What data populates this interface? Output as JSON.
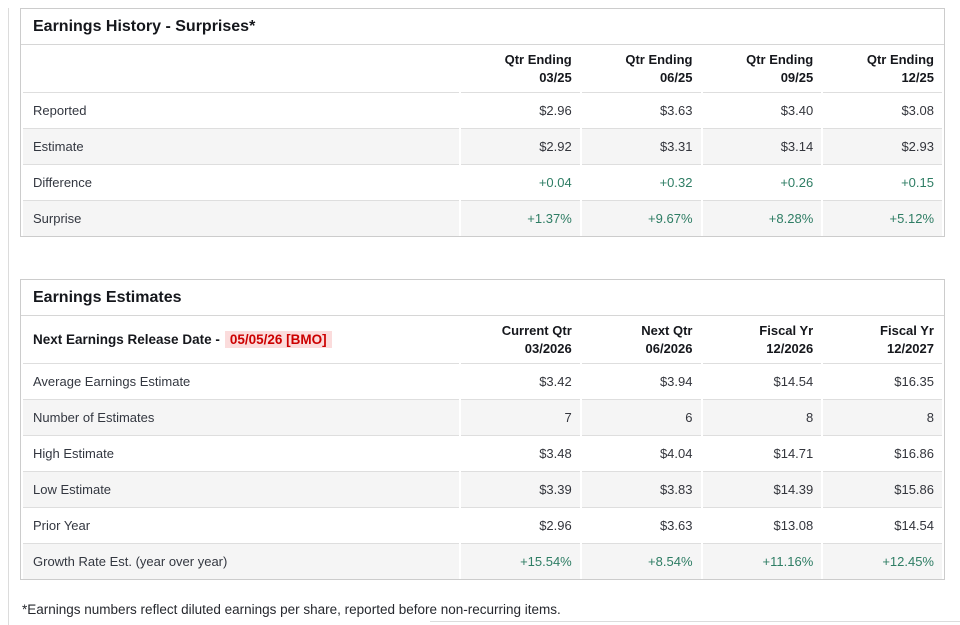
{
  "colors": {
    "positive_green": "#2e7d64",
    "alert_red": "#cc0000",
    "alert_red_bg": "#fbdcdc",
    "alt_row_bg": "#f5f5f5",
    "card_border": "#cccccc"
  },
  "earnings_history": {
    "title": "Earnings History - Surprises*",
    "columns": [
      {
        "line1": "Qtr Ending",
        "line2": "03/25"
      },
      {
        "line1": "Qtr Ending",
        "line2": "06/25"
      },
      {
        "line1": "Qtr Ending",
        "line2": "09/25"
      },
      {
        "line1": "Qtr Ending",
        "line2": "12/25"
      }
    ],
    "rows": [
      {
        "label": "Reported",
        "values": [
          "$2.96",
          "$3.63",
          "$3.40",
          "$3.08"
        ]
      },
      {
        "label": "Estimate",
        "values": [
          "$2.92",
          "$3.31",
          "$3.14",
          "$2.93"
        ]
      },
      {
        "label": "Difference",
        "values": [
          "+0.04",
          "+0.32",
          "+0.26",
          "+0.15"
        ]
      },
      {
        "label": "Surprise",
        "values": [
          "+1.37%",
          "+9.67%",
          "+8.28%",
          "+5.12%"
        ]
      }
    ]
  },
  "earnings_estimates": {
    "title": "Earnings Estimates",
    "release_label": "Next Earnings Release Date -",
    "release_date": "05/05/26 [BMO]",
    "columns": [
      {
        "line1": "Current Qtr",
        "line2": "03/2026"
      },
      {
        "line1": "Next Qtr",
        "line2": "06/2026"
      },
      {
        "line1": "Fiscal Yr",
        "line2": "12/2026"
      },
      {
        "line1": "Fiscal Yr",
        "line2": "12/2027"
      }
    ],
    "rows": [
      {
        "label": "Average Earnings Estimate",
        "values": [
          "$3.42",
          "$3.94",
          "$14.54",
          "$16.35"
        ]
      },
      {
        "label": "Number of Estimates",
        "values": [
          "7",
          "6",
          "8",
          "8"
        ]
      },
      {
        "label": "High Estimate",
        "values": [
          "$3.48",
          "$4.04",
          "$14.71",
          "$16.86"
        ]
      },
      {
        "label": "Low Estimate",
        "values": [
          "$3.39",
          "$3.83",
          "$14.39",
          "$15.86"
        ]
      },
      {
        "label": "Prior Year",
        "values": [
          "$2.96",
          "$3.63",
          "$13.08",
          "$14.54"
        ]
      },
      {
        "label": "Growth Rate Est. (year over year)",
        "values": [
          "+15.54%",
          "+8.54%",
          "+11.16%",
          "+12.45%"
        ]
      }
    ]
  },
  "footnote": "*Earnings numbers reflect diluted earnings per share, reported before non-recurring items."
}
